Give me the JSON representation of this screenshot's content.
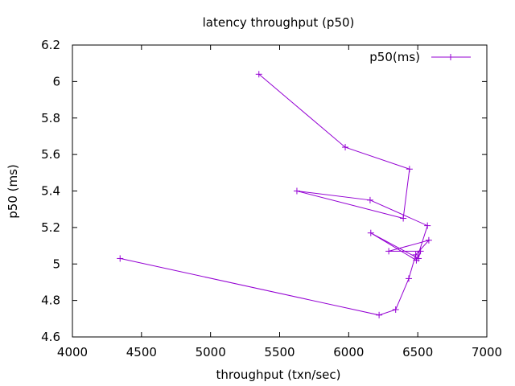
{
  "chart_data": {
    "type": "line",
    "title": "latency throughput (p50)",
    "xlabel": "throughput (txn/sec)",
    "ylabel": "p50 (ms)",
    "xlim": [
      4000,
      7000
    ],
    "ylim": [
      4.6,
      6.2
    ],
    "xticks": [
      4000,
      4500,
      5000,
      5500,
      6000,
      6500,
      7000
    ],
    "yticks": [
      4.6,
      4.8,
      5,
      5.2,
      5.4,
      5.6,
      5.8,
      6,
      6.2
    ],
    "ytick_labels": [
      "4.6",
      "4.8",
      "5",
      "5.2",
      "5.4",
      "5.6",
      "5.8",
      "6",
      "6.2"
    ],
    "grid": false,
    "legend_position": "top-right",
    "series": [
      {
        "name": "p50(ms)",
        "color": "#9400d3",
        "marker": "plus",
        "points": [
          {
            "x": 5350,
            "y": 6.04
          },
          {
            "x": 5975,
            "y": 5.64
          },
          {
            "x": 6440,
            "y": 5.52
          },
          {
            "x": 6395,
            "y": 5.25
          },
          {
            "x": 5625,
            "y": 5.4
          },
          {
            "x": 6155,
            "y": 5.35
          },
          {
            "x": 6570,
            "y": 5.21
          },
          {
            "x": 6490,
            "y": 5.02
          },
          {
            "x": 6160,
            "y": 5.17
          },
          {
            "x": 6505,
            "y": 5.03
          },
          {
            "x": 6520,
            "y": 5.07
          },
          {
            "x": 6290,
            "y": 5.07
          },
          {
            "x": 6580,
            "y": 5.13
          },
          {
            "x": 6485,
            "y": 5.05
          },
          {
            "x": 6435,
            "y": 4.92
          },
          {
            "x": 6340,
            "y": 4.75
          },
          {
            "x": 6220,
            "y": 4.72
          },
          {
            "x": 4345,
            "y": 5.03
          }
        ]
      }
    ]
  }
}
